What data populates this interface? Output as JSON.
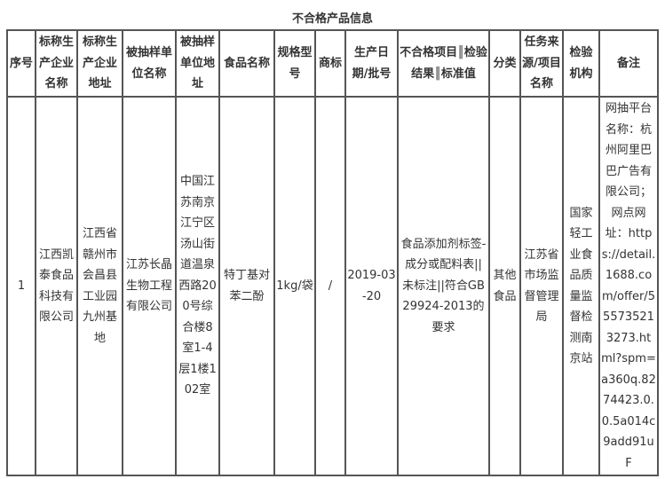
{
  "title": "不合格产品信息",
  "headers": [
    "序号",
    "标称生产企业名称",
    "标称生产企业地址",
    "被抽样单位名称",
    "被抽样单位地址",
    "食品名称",
    "规格型号",
    "商标",
    "生产日期/批号",
    "不合格项目║检验结果║标准值",
    "分类",
    "任务来源/项目名称",
    "检验机构",
    "备注"
  ],
  "rows": [
    [
      "1",
      "江西凯泰食品科技有限公司",
      "江西省赣州市会昌县工业园九州基地",
      "江苏长晶生物工程有限公司",
      "中国江苏南京江宁区汤山街道温泉西路200号综合楼8室1-4层1楼102室",
      "特丁基对苯二酚",
      "1kg/袋",
      "/",
      "2019-03-20",
      "食品添加剂标签-成分或配料表||未标注||符合GB29924-2013的要求",
      "其他食品",
      "江苏省市场监督管理局",
      "国家轻工业食品质量监督检测南京站",
      "网抽平台名称：杭州阿里巴巴广告有限公司；网点网址：https://detail.1688.com/offer/555735213273.html?spm=a360q.8274423.0.0.5a014c9add91uF"
    ]
  ]
}
